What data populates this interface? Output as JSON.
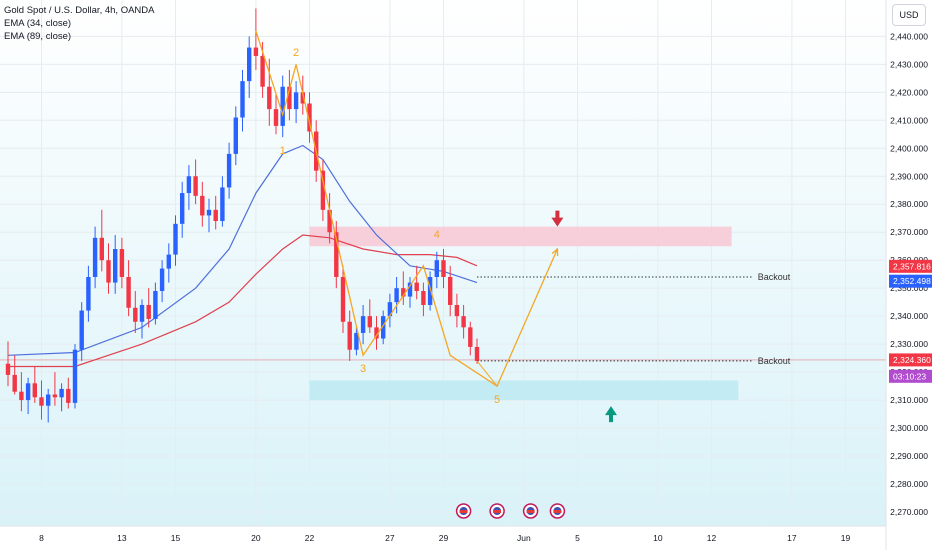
{
  "legend": {
    "title": "Gold Spot / U.S. Dollar, 4h, OANDA",
    "ema34": "EMA (34, close)",
    "ema89": "EMA (89, close)"
  },
  "currency_button": "USD",
  "colors": {
    "up": "#2962ff",
    "down": "#f23645",
    "ema34": "#4f6fdc",
    "ema89": "#e0414f",
    "wave": "#f5a623",
    "resistance_zone": "#f8c8d4",
    "support_zone": "#bfeaf2",
    "price_badge": "#f23645",
    "ema_badge": "#2962ff",
    "countdown_badge": "#b24ccf",
    "arrow_down": "#d32f3f",
    "arrow_up": "#089981"
  },
  "chart_data": {
    "type": "candlestick",
    "title": "Gold Spot / U.S. Dollar, 4h, OANDA",
    "ylim": [
      2265,
      2453
    ],
    "y_ticks": [
      2270,
      2280,
      2290,
      2300,
      2310,
      2320,
      2330,
      2340,
      2350,
      2360,
      2370,
      2380,
      2390,
      2400,
      2410,
      2420,
      2430,
      2440
    ],
    "x_ticks": [
      {
        "label": "8",
        "i": 5
      },
      {
        "label": "13",
        "i": 17
      },
      {
        "label": "15",
        "i": 25
      },
      {
        "label": "20",
        "i": 37
      },
      {
        "label": "22",
        "i": 45
      },
      {
        "label": "27",
        "i": 57
      },
      {
        "label": "29",
        "i": 65
      },
      {
        "label": "Jun",
        "i": 77
      },
      {
        "label": "5",
        "i": 85
      },
      {
        "label": "10",
        "i": 97
      },
      {
        "label": "12",
        "i": 105
      },
      {
        "label": "17",
        "i": 117
      },
      {
        "label": "19",
        "i": 125
      }
    ],
    "n_slots": 136,
    "candles": [
      [
        2323,
        2331,
        2315,
        2319
      ],
      [
        2319,
        2326,
        2312,
        2313
      ],
      [
        2313,
        2320,
        2306,
        2310
      ],
      [
        2310,
        2318,
        2305,
        2316
      ],
      [
        2316,
        2322,
        2309,
        2311
      ],
      [
        2311,
        2317,
        2303,
        2308
      ],
      [
        2308,
        2314,
        2302,
        2312
      ],
      [
        2312,
        2320,
        2308,
        2311
      ],
      [
        2311,
        2316,
        2306,
        2314
      ],
      [
        2314,
        2318,
        2307,
        2309
      ],
      [
        2309,
        2330,
        2307,
        2328
      ],
      [
        2328,
        2345,
        2324,
        2342
      ],
      [
        2342,
        2358,
        2338,
        2354
      ],
      [
        2354,
        2372,
        2350,
        2368
      ],
      [
        2368,
        2378,
        2356,
        2360
      ],
      [
        2360,
        2366,
        2348,
        2352
      ],
      [
        2352,
        2369,
        2348,
        2364
      ],
      [
        2364,
        2368,
        2350,
        2354
      ],
      [
        2354,
        2360,
        2340,
        2343
      ],
      [
        2343,
        2349,
        2334,
        2338
      ],
      [
        2338,
        2346,
        2332,
        2344
      ],
      [
        2344,
        2350,
        2336,
        2339
      ],
      [
        2339,
        2352,
        2337,
        2349
      ],
      [
        2349,
        2360,
        2345,
        2357
      ],
      [
        2357,
        2366,
        2352,
        2362
      ],
      [
        2362,
        2376,
        2358,
        2373
      ],
      [
        2373,
        2388,
        2368,
        2384
      ],
      [
        2384,
        2394,
        2378,
        2390
      ],
      [
        2390,
        2396,
        2380,
        2383
      ],
      [
        2383,
        2388,
        2372,
        2376
      ],
      [
        2376,
        2382,
        2370,
        2378
      ],
      [
        2378,
        2383,
        2371,
        2374
      ],
      [
        2374,
        2390,
        2372,
        2386
      ],
      [
        2386,
        2402,
        2382,
        2398
      ],
      [
        2398,
        2415,
        2394,
        2411
      ],
      [
        2411,
        2428,
        2406,
        2424
      ],
      [
        2424,
        2440,
        2418,
        2436
      ],
      [
        2436,
        2450,
        2428,
        2433
      ],
      [
        2433,
        2438,
        2418,
        2422
      ],
      [
        2422,
        2432,
        2408,
        2414
      ],
      [
        2414,
        2420,
        2405,
        2408
      ],
      [
        2408,
        2426,
        2404,
        2422
      ],
      [
        2422,
        2428,
        2410,
        2414
      ],
      [
        2414,
        2424,
        2409,
        2420
      ],
      [
        2420,
        2426,
        2412,
        2416
      ],
      [
        2416,
        2420,
        2402,
        2406
      ],
      [
        2406,
        2410,
        2388,
        2392
      ],
      [
        2392,
        2396,
        2374,
        2378
      ],
      [
        2378,
        2384,
        2366,
        2370
      ],
      [
        2370,
        2374,
        2350,
        2354
      ],
      [
        2354,
        2358,
        2334,
        2338
      ],
      [
        2338,
        2342,
        2324,
        2328
      ],
      [
        2328,
        2336,
        2326,
        2334
      ],
      [
        2334,
        2344,
        2330,
        2340
      ],
      [
        2340,
        2346,
        2334,
        2336
      ],
      [
        2336,
        2340,
        2328,
        2332
      ],
      [
        2332,
        2342,
        2330,
        2340
      ],
      [
        2340,
        2348,
        2336,
        2345
      ],
      [
        2345,
        2354,
        2341,
        2350
      ],
      [
        2350,
        2356,
        2344,
        2347
      ],
      [
        2347,
        2354,
        2343,
        2352
      ],
      [
        2352,
        2358,
        2346,
        2349
      ],
      [
        2349,
        2352,
        2340,
        2344
      ],
      [
        2344,
        2356,
        2342,
        2354
      ],
      [
        2354,
        2363,
        2350,
        2360
      ],
      [
        2360,
        2364,
        2350,
        2354
      ],
      [
        2354,
        2358,
        2340,
        2344
      ],
      [
        2344,
        2348,
        2336,
        2340
      ],
      [
        2340,
        2344,
        2332,
        2336
      ],
      [
        2336,
        2338,
        2326,
        2329
      ],
      [
        2329,
        2332,
        2323,
        2324
      ]
    ],
    "ema34": [
      [
        0,
        2326
      ],
      [
        10,
        2327
      ],
      [
        20,
        2336
      ],
      [
        28,
        2350
      ],
      [
        33,
        2364
      ],
      [
        37,
        2384
      ],
      [
        41,
        2398
      ],
      [
        44,
        2401
      ],
      [
        47,
        2396
      ],
      [
        51,
        2381
      ],
      [
        55,
        2369
      ],
      [
        60,
        2358
      ],
      [
        65,
        2356
      ],
      [
        70,
        2352
      ]
    ],
    "ema89": [
      [
        0,
        2322
      ],
      [
        10,
        2322
      ],
      [
        20,
        2330
      ],
      [
        28,
        2338
      ],
      [
        33,
        2345
      ],
      [
        37,
        2355
      ],
      [
        41,
        2364
      ],
      [
        44,
        2369
      ],
      [
        48,
        2368
      ],
      [
        53,
        2364
      ],
      [
        58,
        2362
      ],
      [
        63,
        2362
      ],
      [
        67,
        2361
      ],
      [
        70,
        2358
      ]
    ],
    "wave": [
      [
        37,
        2442
      ],
      [
        41,
        2412
      ],
      [
        43,
        2430
      ],
      [
        53,
        2326
      ],
      [
        62,
        2358
      ],
      [
        66,
        2326
      ],
      [
        73,
        2315
      ],
      [
        82,
        2364
      ]
    ],
    "wave_labels": [
      {
        "text": "1",
        "i": 41,
        "y": 2398
      },
      {
        "text": "2",
        "i": 43,
        "y": 2433
      },
      {
        "text": "3",
        "i": 53,
        "y": 2320
      },
      {
        "text": "4",
        "i": 64,
        "y": 2368
      },
      {
        "text": "5",
        "i": 73,
        "y": 2309
      }
    ],
    "resistance_zone": {
      "i1": 45,
      "i2": 108,
      "y1": 2365,
      "y2": 2372
    },
    "support_zone": {
      "i1": 45,
      "i2": 109,
      "y1": 2310,
      "y2": 2317
    },
    "backout_lines": [
      {
        "label": "Backout",
        "y": 2354,
        "i1": 70,
        "i2": 111
      },
      {
        "label": "Backout",
        "y": 2324,
        "i1": 70,
        "i2": 111
      }
    ],
    "last_price_y": 2324.36,
    "price_badges": [
      {
        "text": "2,357.816",
        "y": 2357.816,
        "kind": "price"
      },
      {
        "text": "2,352.498",
        "y": 2352.498,
        "kind": "ema"
      },
      {
        "text": "2,324.360",
        "y": 2324.36,
        "kind": "price"
      },
      {
        "text": "03:10:23",
        "y": 2318.5,
        "kind": "countdown"
      }
    ],
    "arrow_down": {
      "i": 82,
      "y": 2372
    },
    "arrow_up": {
      "i": 90,
      "y": 2305
    },
    "event_icons": [
      68,
      73,
      78,
      82
    ]
  }
}
